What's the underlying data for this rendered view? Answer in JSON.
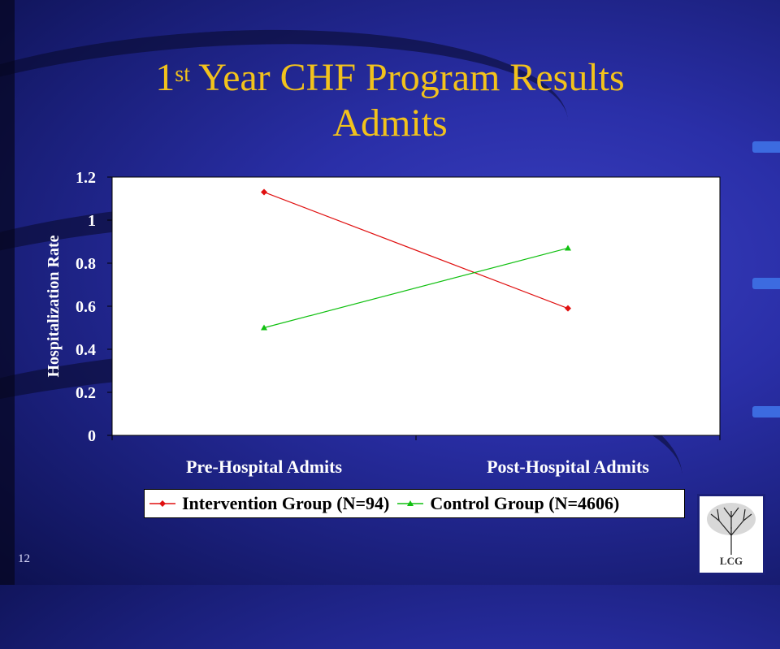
{
  "slide": {
    "title_sup_number": "1",
    "title_sup": "st",
    "title_line1_rest": " Year CHF Program Results",
    "title_line2": "Admits",
    "number": "12",
    "logo_text": "LCG"
  },
  "chart_data": {
    "type": "line",
    "title": "",
    "xlabel": "",
    "ylabel": "Hospitalization Rate",
    "categories": [
      "Pre-Hospital Admits",
      "Post-Hospital Admits"
    ],
    "ylim": [
      0,
      1.2
    ],
    "yticks": [
      "0",
      "0.2",
      "0.4",
      "0.6",
      "0.8",
      "1",
      "1.2"
    ],
    "grid": false,
    "legend": "bottom",
    "series": [
      {
        "name": "Intervention Group (N=94)",
        "values": [
          1.13,
          0.59
        ],
        "labels": [
          "1.13",
          "0.59"
        ],
        "color": "#e01010",
        "marker": "diamond"
      },
      {
        "name": "Control Group (N=4606)",
        "values": [
          0.5,
          0.87
        ],
        "labels": [
          "0.5",
          "0.87"
        ],
        "color": "#10c010",
        "marker": "triangle"
      }
    ]
  }
}
